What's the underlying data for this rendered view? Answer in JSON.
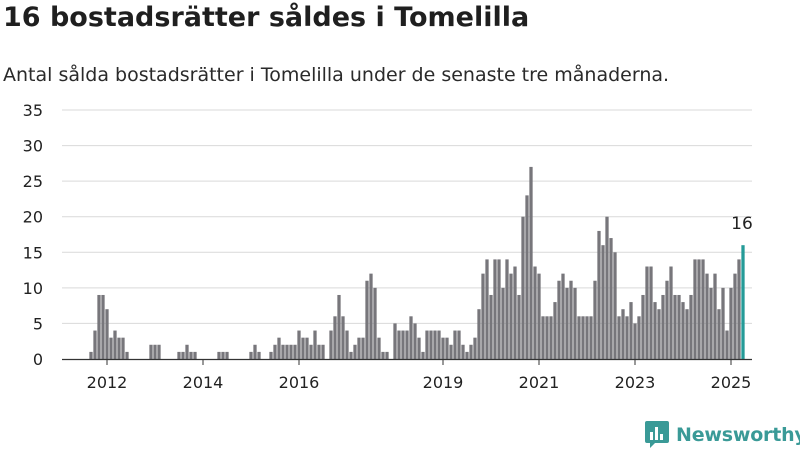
{
  "title": "16 bostadsrätter såldes i Tomelilla",
  "subtitle": "Antal sålda bostadsrätter i Tomelilla under de senaste tre månaderna.",
  "brand": {
    "name": "Newsworthy",
    "color": "#3a9a97"
  },
  "colors": {
    "bar": "#77767b",
    "highlight": "#259b98",
    "grid": "#d9d9d9",
    "axis": "#333333"
  },
  "chart_data": {
    "type": "bar",
    "title": "16 bostadsrätter såldes i Tomelilla",
    "subtitle": "Antal sålda bostadsrätter i Tomelilla under de senaste tre månaderna.",
    "xlabel": "",
    "ylabel": "",
    "ylim": [
      0,
      35
    ],
    "yticks": [
      0,
      5,
      10,
      15,
      20,
      25,
      30,
      35
    ],
    "xticks": [
      "2012",
      "2014",
      "2016",
      "2019",
      "2021",
      "2023",
      "2025"
    ],
    "x_start": "2011-09",
    "x_end": "2025-04",
    "grid": true,
    "highlight_label": "16",
    "values": [
      1,
      4,
      9,
      9,
      7,
      3,
      4,
      3,
      3,
      1,
      0,
      0,
      0,
      0,
      0,
      2,
      2,
      2,
      0,
      0,
      0,
      0,
      1,
      1,
      2,
      1,
      1,
      0,
      0,
      0,
      0,
      0,
      1,
      1,
      1,
      0,
      0,
      0,
      0,
      0,
      1,
      2,
      1,
      0,
      0,
      1,
      2,
      3,
      2,
      2,
      2,
      2,
      4,
      3,
      3,
      2,
      4,
      2,
      2,
      0,
      4,
      6,
      9,
      6,
      4,
      1,
      2,
      3,
      3,
      11,
      12,
      10,
      3,
      1,
      1,
      0,
      5,
      4,
      4,
      4,
      6,
      5,
      3,
      1,
      4,
      4,
      4,
      4,
      3,
      3,
      2,
      4,
      4,
      2,
      1,
      2,
      3,
      7,
      12,
      14,
      9,
      14,
      14,
      10,
      14,
      12,
      13,
      9,
      20,
      23,
      27,
      13,
      12,
      6,
      6,
      6,
      8,
      11,
      12,
      10,
      11,
      10,
      6,
      6,
      6,
      6,
      11,
      18,
      16,
      20,
      17,
      15,
      6,
      7,
      6,
      8,
      5,
      6,
      9,
      13,
      13,
      8,
      7,
      9,
      11,
      13,
      9,
      9,
      8,
      7,
      9,
      14,
      14,
      14,
      12,
      10,
      12,
      7,
      10,
      4,
      10,
      12,
      14,
      16
    ]
  }
}
